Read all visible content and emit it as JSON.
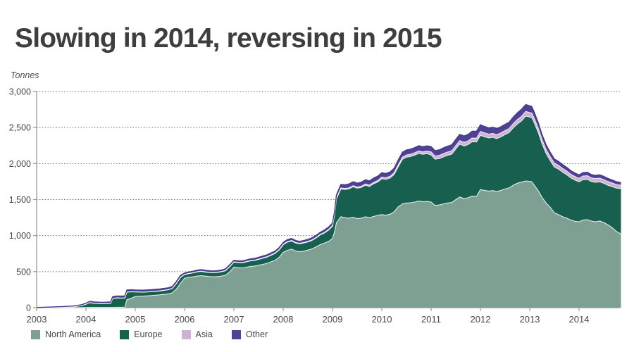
{
  "page": {
    "title": "Slowing in 2014, reversing in 2015",
    "units_label": "Tonnes"
  },
  "legend": [
    {
      "label": "North America",
      "color": "#7ea092"
    },
    {
      "label": "Europe",
      "color": "#17604f"
    },
    {
      "label": "Asia",
      "color": "#cdb2d4"
    },
    {
      "label": "Other",
      "color": "#4f4196"
    }
  ],
  "chart_data": {
    "type": "area",
    "stacked": true,
    "title": "Slowing in 2014, reversing in 2015",
    "xlabel": "",
    "ylabel": "Tonnes",
    "ylim": [
      0,
      3000
    ],
    "yticks": [
      0,
      500,
      1000,
      1500,
      2000,
      2500,
      3000
    ],
    "ytick_labels": [
      "0",
      "500",
      "1,000",
      "1,500",
      "2,000",
      "2,500",
      "3,000"
    ],
    "xticks": [
      2003,
      2004,
      2005,
      2006,
      2007,
      2008,
      2009,
      2010,
      2011,
      2012,
      2013,
      2014
    ],
    "x_range": [
      2003.0,
      2014.85
    ],
    "grid": "horizontal-dotted",
    "legend_position": "bottom-left",
    "axis_color": "#9a9a9a",
    "grid_color": "#6e6e6e",
    "x": [
      2003.0,
      2003.25,
      2003.5,
      2003.75,
      2003.92,
      2004.0,
      2004.08,
      2004.17,
      2004.33,
      2004.5,
      2004.54,
      2004.62,
      2004.75,
      2004.79,
      2004.83,
      2004.92,
      2005.0,
      2005.17,
      2005.33,
      2005.5,
      2005.67,
      2005.75,
      2005.83,
      2005.92,
      2006.0,
      2006.08,
      2006.17,
      2006.25,
      2006.33,
      2006.42,
      2006.5,
      2006.58,
      2006.67,
      2006.75,
      2006.83,
      2006.92,
      2007.0,
      2007.08,
      2007.17,
      2007.25,
      2007.33,
      2007.42,
      2007.5,
      2007.58,
      2007.67,
      2007.75,
      2007.83,
      2007.92,
      2008.0,
      2008.08,
      2008.17,
      2008.25,
      2008.33,
      2008.42,
      2008.5,
      2008.58,
      2008.67,
      2008.75,
      2008.83,
      2008.92,
      2009.0,
      2009.04,
      2009.08,
      2009.17,
      2009.25,
      2009.33,
      2009.42,
      2009.5,
      2009.58,
      2009.67,
      2009.75,
      2009.83,
      2009.92,
      2010.0,
      2010.08,
      2010.17,
      2010.25,
      2010.33,
      2010.42,
      2010.5,
      2010.58,
      2010.67,
      2010.75,
      2010.83,
      2010.92,
      2011.0,
      2011.08,
      2011.17,
      2011.25,
      2011.33,
      2011.42,
      2011.5,
      2011.58,
      2011.67,
      2011.75,
      2011.83,
      2011.92,
      2012.0,
      2012.08,
      2012.17,
      2012.25,
      2012.33,
      2012.42,
      2012.5,
      2012.58,
      2012.67,
      2012.75,
      2012.83,
      2012.92,
      2013.0,
      2013.04,
      2013.08,
      2013.17,
      2013.25,
      2013.33,
      2013.42,
      2013.5,
      2013.58,
      2013.67,
      2013.75,
      2013.83,
      2013.92,
      2014.0,
      2014.08,
      2014.17,
      2014.25,
      2014.33,
      2014.42,
      2014.5,
      2014.58,
      2014.67,
      2014.75,
      2014.83,
      2014.85
    ],
    "series": [
      {
        "name": "North America",
        "color": "#7ea092",
        "values": [
          0,
          0,
          0,
          1,
          2,
          3,
          5,
          5,
          4,
          4,
          5,
          6,
          6,
          8,
          110,
          130,
          155,
          160,
          168,
          178,
          192,
          205,
          255,
          340,
          408,
          420,
          428,
          438,
          445,
          438,
          432,
          428,
          432,
          438,
          450,
          500,
          562,
          555,
          552,
          562,
          572,
          578,
          588,
          600,
          615,
          635,
          655,
          700,
          768,
          795,
          812,
          788,
          775,
          785,
          798,
          815,
          845,
          875,
          895,
          920,
          960,
          1050,
          1180,
          1262,
          1250,
          1242,
          1255,
          1235,
          1242,
          1262,
          1248,
          1265,
          1282,
          1292,
          1282,
          1298,
          1330,
          1398,
          1440,
          1452,
          1456,
          1466,
          1480,
          1470,
          1476,
          1466,
          1420,
          1426,
          1440,
          1452,
          1460,
          1500,
          1535,
          1515,
          1525,
          1548,
          1545,
          1640,
          1628,
          1618,
          1625,
          1612,
          1628,
          1648,
          1662,
          1700,
          1728,
          1742,
          1759,
          1752,
          1748,
          1712,
          1625,
          1530,
          1455,
          1390,
          1315,
          1292,
          1262,
          1242,
          1218,
          1198,
          1192,
          1215,
          1222,
          1202,
          1192,
          1202,
          1182,
          1152,
          1112,
          1062,
          1032,
          1016
        ]
      },
      {
        "name": "Europe",
        "color": "#17604f",
        "values": [
          1,
          3,
          6,
          10,
          28,
          45,
          65,
          55,
          52,
          56,
          120,
          129,
          126,
          128,
          105,
          90,
          63,
          55,
          54,
          54,
          56,
          60,
          75,
          80,
          50,
          52,
          54,
          57,
          58,
          56,
          56,
          57,
          58,
          60,
          62,
          70,
          70,
          70,
          70,
          73,
          76,
          77,
          80,
          84,
          87,
          91,
          95,
          100,
          104,
          113,
          113,
          110,
          110,
          113,
          114,
          117,
          123,
          133,
          140,
          155,
          170,
          230,
          330,
          386,
          390,
          406,
          423,
          423,
          426,
          438,
          434,
          453,
          463,
          498,
          498,
          502,
          518,
          554,
          620,
          636,
          642,
          652,
          662,
          658,
          662,
          654,
          640,
          645,
          654,
          662,
          671,
          702,
          734,
          730,
          740,
          755,
          755,
          752,
          745,
          738,
          740,
          734,
          744,
          756,
          768,
          800,
          822,
          848,
          900,
          892,
          890,
          872,
          812,
          745,
          688,
          646,
          636,
          632,
          617,
          603,
          585,
          572,
          554,
          561,
          558,
          548,
          548,
          544,
          544,
          548,
          568,
          598,
          620,
          635
        ]
      },
      {
        "name": "Asia",
        "color": "#cdb2d4",
        "values": [
          0,
          0,
          0,
          0,
          0,
          0,
          0,
          0,
          0,
          0,
          0,
          1,
          1,
          1,
          1,
          1,
          1,
          1,
          1,
          2,
          2,
          2,
          2,
          2,
          3,
          3,
          3,
          3,
          3,
          3,
          3,
          3,
          3,
          3,
          4,
          4,
          4,
          4,
          4,
          5,
          5,
          5,
          6,
          6,
          6,
          6,
          7,
          7,
          7,
          7,
          8,
          8,
          8,
          8,
          8,
          8,
          8,
          8,
          9,
          10,
          10,
          11,
          12,
          13,
          14,
          14,
          15,
          15,
          16,
          17,
          18,
          19,
          20,
          22,
          23,
          24,
          25,
          28,
          30,
          31,
          32,
          33,
          34,
          34,
          35,
          42,
          43,
          44,
          45,
          46,
          47,
          48,
          49,
          49,
          50,
          51,
          52,
          53,
          53,
          53,
          54,
          54,
          55,
          55,
          56,
          58,
          61,
          64,
          64,
          64,
          63,
          62,
          60,
          58,
          56,
          55,
          54,
          53,
          52,
          51,
          50,
          49,
          50,
          51,
          51,
          51,
          51,
          52,
          52,
          52,
          51,
          50,
          49,
          49
        ]
      },
      {
        "name": "Other",
        "color": "#4f4196",
        "values": [
          2,
          5,
          8,
          11,
          12,
          14,
          18,
          18,
          17,
          18,
          25,
          26,
          27,
          27,
          29,
          27,
          26,
          26,
          27,
          26,
          26,
          27,
          28,
          28,
          19,
          20,
          20,
          22,
          22,
          21,
          21,
          21,
          21,
          21,
          22,
          24,
          22,
          21,
          22,
          22,
          23,
          23,
          24,
          25,
          25,
          26,
          26,
          28,
          26,
          28,
          27,
          27,
          27,
          27,
          28,
          28,
          29,
          29,
          31,
          33,
          35,
          39,
          43,
          49,
          51,
          53,
          55,
          55,
          56,
          58,
          58,
          60,
          61,
          60,
          59,
          61,
          62,
          65,
          68,
          69,
          70,
          71,
          72,
          72,
          73,
          73,
          75,
          77,
          79,
          80,
          82,
          85,
          87,
          88,
          90,
          94,
          96,
          93,
          89,
          86,
          86,
          85,
          85,
          86,
          86,
          90,
          94,
          98,
          95,
          94,
          92,
          86,
          76,
          68,
          64,
          60,
          57,
          55,
          54,
          52,
          50,
          48,
          46,
          47,
          48,
          46,
          45,
          45,
          44,
          43,
          42,
          40,
          38,
          37
        ]
      }
    ]
  }
}
